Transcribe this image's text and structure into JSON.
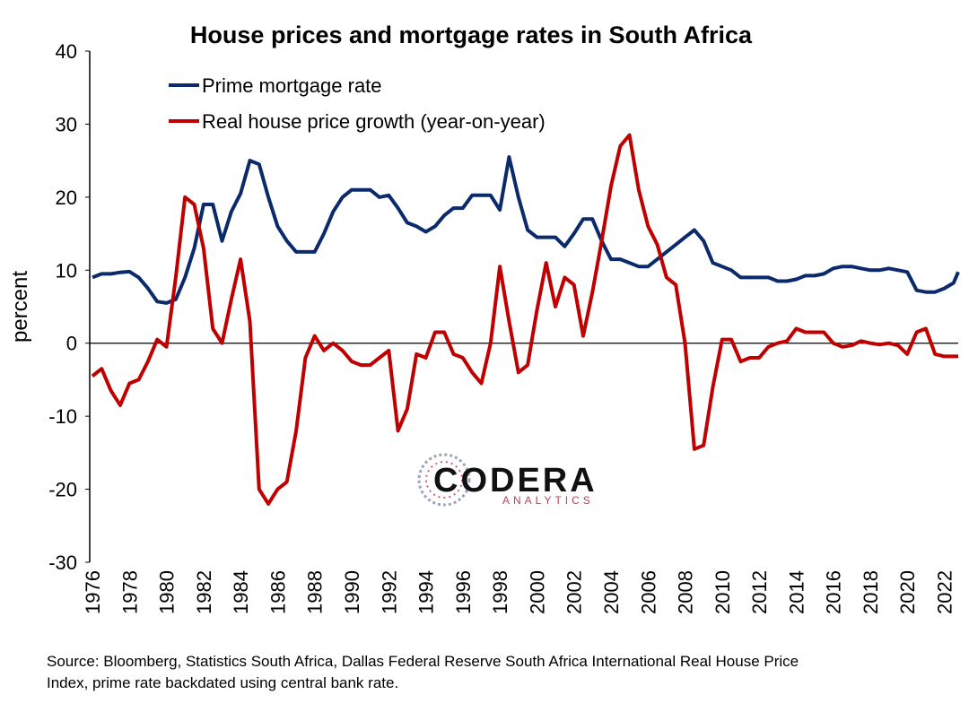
{
  "chart_data": {
    "type": "line",
    "title": "House prices and mortgage rates in South Africa",
    "ylabel": "percent",
    "source": [
      "Source: Bloomberg, Statistics South Africa, Dallas Federal Reserve South Africa International Real House Price",
      "Index, prime rate backdated using central bank rate."
    ],
    "watermark": {
      "text": "CODERA",
      "subtext": "ANALYTICS"
    },
    "legend": "upper left",
    "zero_line": true,
    "x": [
      1976,
      1976.5,
      1977,
      1977.5,
      1978,
      1978.5,
      1979,
      1979.5,
      1980,
      1980.5,
      1981,
      1981.5,
      1982,
      1982.5,
      1983,
      1983.5,
      1984,
      1984.5,
      1985,
      1985.5,
      1986,
      1986.5,
      1987,
      1987.5,
      1988,
      1988.5,
      1989,
      1989.5,
      1990,
      1990.5,
      1991,
      1991.5,
      1992,
      1992.5,
      1993,
      1993.5,
      1994,
      1994.5,
      1995,
      1995.5,
      1996,
      1996.5,
      1997,
      1997.5,
      1998,
      1998.5,
      1999,
      1999.5,
      2000,
      2000.5,
      2001,
      2001.5,
      2002,
      2002.5,
      2003,
      2003.5,
      2004,
      2004.5,
      2005,
      2005.5,
      2006,
      2006.5,
      2007,
      2007.5,
      2008,
      2008.5,
      2009,
      2009.5,
      2010,
      2010.5,
      2011,
      2011.5,
      2012,
      2012.5,
      2013,
      2013.5,
      2014,
      2014.5,
      2015,
      2015.5,
      2016,
      2016.5,
      2017,
      2017.5,
      2018,
      2018.5,
      2019,
      2019.5,
      2020,
      2020.5,
      2021,
      2021.5,
      2022,
      2022.5,
      2022.75
    ],
    "series": [
      {
        "name": "Prime mortgage rate",
        "color": "#0b2a6b",
        "values": [
          9,
          9.5,
          9.5,
          9.7,
          9.8,
          9,
          7.5,
          5.7,
          5.5,
          6,
          9,
          13,
          19,
          19,
          14,
          18,
          20.5,
          25,
          24.5,
          20,
          16,
          14,
          12.5,
          12.5,
          12.5,
          15,
          18,
          20,
          21,
          21,
          21,
          20,
          20.25,
          18.5,
          16.5,
          16,
          15.25,
          16,
          17.5,
          18.5,
          18.5,
          20.25,
          20.25,
          20.25,
          18.25,
          25.5,
          20,
          15.5,
          14.5,
          14.5,
          14.5,
          13.25,
          15,
          17,
          17,
          14,
          11.5,
          11.5,
          11,
          10.5,
          10.5,
          11.5,
          12.5,
          13.5,
          14.5,
          15.5,
          14,
          11,
          10.5,
          10,
          9,
          9,
          9,
          9,
          8.5,
          8.5,
          8.75,
          9.25,
          9.25,
          9.5,
          10.25,
          10.5,
          10.5,
          10.25,
          10,
          10,
          10.25,
          10,
          9.75,
          7.25,
          7,
          7,
          7.5,
          8.25,
          9.75
        ]
      },
      {
        "name": "Real house price growth (year-on-year)",
        "color": "#c00000",
        "values": [
          -4.5,
          -3.5,
          -6.5,
          -8.5,
          -5.5,
          -5,
          -2.5,
          0.5,
          -0.5,
          9,
          20,
          19,
          13,
          2,
          0,
          6,
          11.5,
          3,
          -20,
          -22,
          -20,
          -19,
          -12,
          -2,
          1,
          -1,
          0,
          -1,
          -2.5,
          -3,
          -3,
          -2,
          -1,
          -12,
          -9,
          -1.5,
          -2,
          1.5,
          1.5,
          -1.5,
          -2,
          -4,
          -5.5,
          0,
          10.5,
          3,
          -4,
          -3,
          4.5,
          11,
          5,
          9,
          8,
          1,
          7,
          14,
          21.5,
          27,
          28.5,
          21,
          16,
          13.5,
          9,
          8,
          0,
          -14.5,
          -14,
          -6,
          0.5,
          0.5,
          -2.5,
          -2,
          -2,
          -0.5,
          0,
          0.3,
          2,
          1.5,
          1.5,
          1.5,
          0,
          -0.5,
          -0.3,
          0.3,
          0,
          -0.2,
          0,
          -0.3,
          -1.5,
          1.5,
          2,
          -1.5,
          -1.8,
          -1.8,
          -1.8
        ]
      }
    ],
    "xlim": [
      1976,
      2022.75
    ],
    "xticks": [
      1976,
      1978,
      1980,
      1982,
      1984,
      1986,
      1988,
      1990,
      1992,
      1994,
      1996,
      1998,
      2000,
      2002,
      2004,
      2006,
      2008,
      2010,
      2012,
      2014,
      2016,
      2018,
      2020,
      2022
    ],
    "ylim": [
      -30,
      40
    ],
    "yticks": [
      -30,
      -20,
      -10,
      0,
      10,
      20,
      30,
      40
    ]
  }
}
